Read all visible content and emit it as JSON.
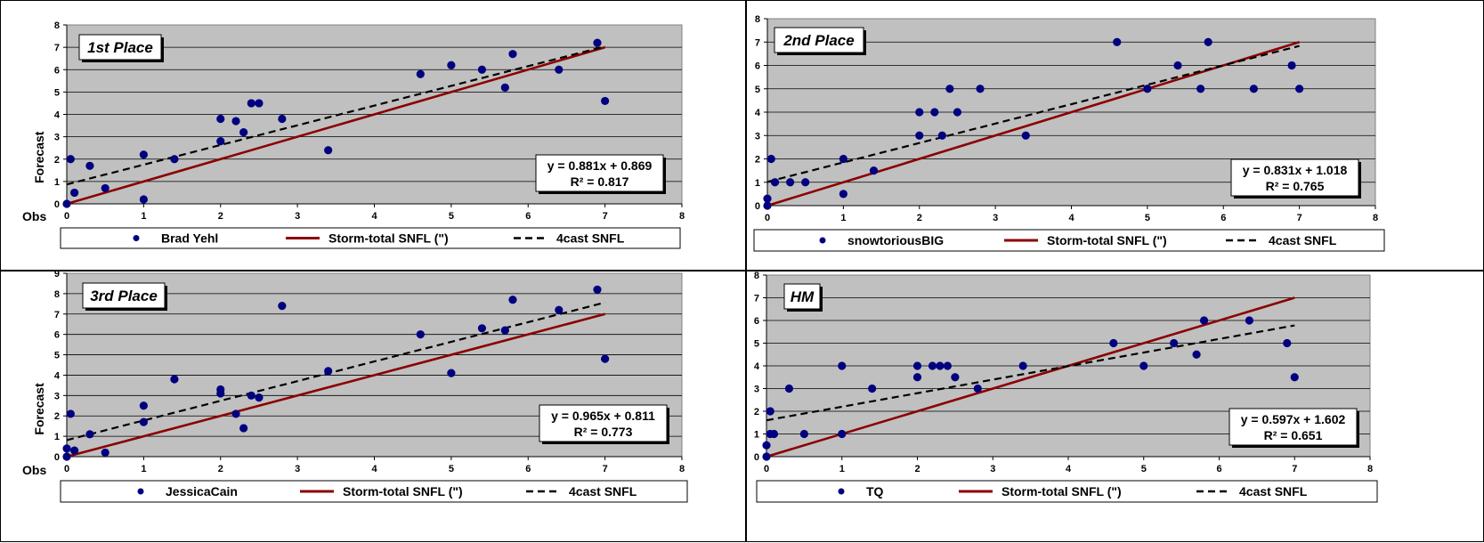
{
  "colors": {
    "plot_bg": "#c0c0c0",
    "grid": "#000000",
    "points": "#000080",
    "storm_line": "#8b0000",
    "forecast_line": "#000000"
  },
  "legend_common": {
    "storm_label": "Storm-total SNFL (\")",
    "forecast_label": "4cast SNFL"
  },
  "chart_data": [
    {
      "type": "scatter",
      "rank_label": "1st Place",
      "forecaster": "Brad Yehl",
      "ylabel": "Forecast",
      "xlabel": "Obs",
      "xlim": [
        0,
        8
      ],
      "ylim": [
        0,
        8
      ],
      "xticks": [
        "0",
        "1",
        "2",
        "3",
        "4",
        "5",
        "6",
        "7",
        "8"
      ],
      "yticks": [
        "0",
        "1",
        "2",
        "3",
        "4",
        "5",
        "6",
        "7",
        "8"
      ],
      "equation": "y = 0.881x + 0.869",
      "r2": "R² = 0.817",
      "trend": {
        "slope": 0.881,
        "intercept": 0.869,
        "x_start": 0,
        "x_end": 7
      },
      "identity_line": {
        "x_start": 0,
        "x_end": 7
      },
      "points": [
        [
          0,
          0
        ],
        [
          0.05,
          2
        ],
        [
          0.1,
          0.5
        ],
        [
          0.3,
          1.7
        ],
        [
          0.5,
          0.7
        ],
        [
          1.0,
          2.2
        ],
        [
          1.0,
          0.2
        ],
        [
          1.4,
          2.0
        ],
        [
          2.0,
          3.8
        ],
        [
          2.0,
          2.8
        ],
        [
          2.2,
          3.7
        ],
        [
          2.3,
          3.2
        ],
        [
          2.4,
          4.5
        ],
        [
          2.5,
          4.5
        ],
        [
          2.8,
          3.8
        ],
        [
          3.4,
          2.4
        ],
        [
          4.6,
          5.8
        ],
        [
          5.0,
          6.2
        ],
        [
          5.4,
          6.0
        ],
        [
          5.7,
          5.2
        ],
        [
          5.8,
          6.7
        ],
        [
          6.4,
          6.0
        ],
        [
          6.9,
          7.2
        ],
        [
          7.0,
          4.6
        ]
      ]
    },
    {
      "type": "scatter",
      "rank_label": "2nd Place",
      "forecaster": "snowtoriousBIG",
      "ylabel": "Forecast",
      "xlabel": "Obs",
      "xlim": [
        0,
        8
      ],
      "ylim": [
        0,
        8
      ],
      "xticks": [
        "0",
        "1",
        "2",
        "3",
        "4",
        "5",
        "6",
        "7",
        "8"
      ],
      "yticks": [
        "0",
        "1",
        "2",
        "3",
        "4",
        "5",
        "6",
        "7",
        "8"
      ],
      "equation": "y = 0.831x + 1.018",
      "r2": "R² = 0.765",
      "trend": {
        "slope": 0.831,
        "intercept": 1.018,
        "x_start": 0,
        "x_end": 7
      },
      "identity_line": {
        "x_start": 0,
        "x_end": 7
      },
      "points": [
        [
          0,
          0.3
        ],
        [
          0,
          0
        ],
        [
          0.05,
          2
        ],
        [
          0.1,
          1
        ],
        [
          0.3,
          1
        ],
        [
          0.5,
          1
        ],
        [
          1.0,
          2
        ],
        [
          1.0,
          0.5
        ],
        [
          1.4,
          1.5
        ],
        [
          2.0,
          4
        ],
        [
          2.0,
          3
        ],
        [
          2.2,
          4
        ],
        [
          2.3,
          3
        ],
        [
          2.4,
          5
        ],
        [
          2.5,
          4
        ],
        [
          2.8,
          5
        ],
        [
          3.4,
          3
        ],
        [
          4.6,
          7
        ],
        [
          5.0,
          5
        ],
        [
          5.4,
          6
        ],
        [
          5.7,
          5
        ],
        [
          5.8,
          7
        ],
        [
          6.4,
          5
        ],
        [
          6.9,
          6
        ],
        [
          7.0,
          5
        ]
      ]
    },
    {
      "type": "scatter",
      "rank_label": "3rd Place",
      "forecaster": "JessicaCain",
      "ylabel": "Forecast",
      "xlabel": "Obs",
      "xlim": [
        0,
        8
      ],
      "ylim": [
        0,
        9
      ],
      "xticks": [
        "0",
        "1",
        "2",
        "3",
        "4",
        "5",
        "6",
        "7",
        "8"
      ],
      "yticks": [
        "0",
        "1",
        "2",
        "3",
        "4",
        "5",
        "6",
        "7",
        "8",
        "9"
      ],
      "equation": "y = 0.965x + 0.811",
      "r2": "R² = 0.773",
      "trend": {
        "slope": 0.965,
        "intercept": 0.811,
        "x_start": 0,
        "x_end": 7
      },
      "identity_line": {
        "x_start": 0,
        "x_end": 7
      },
      "points": [
        [
          0,
          0.4
        ],
        [
          0,
          0
        ],
        [
          0.05,
          2.1
        ],
        [
          0.1,
          0.3
        ],
        [
          0.3,
          1.1
        ],
        [
          0.5,
          0.2
        ],
        [
          1.0,
          2.5
        ],
        [
          1.0,
          1.7
        ],
        [
          1.4,
          3.8
        ],
        [
          2.0,
          3.3
        ],
        [
          2.0,
          3.1
        ],
        [
          2.2,
          2.1
        ],
        [
          2.3,
          1.4
        ],
        [
          2.4,
          3.0
        ],
        [
          2.5,
          2.9
        ],
        [
          2.8,
          7.4
        ],
        [
          3.4,
          4.2
        ],
        [
          4.6,
          6.0
        ],
        [
          5.0,
          4.1
        ],
        [
          5.4,
          6.3
        ],
        [
          5.7,
          6.2
        ],
        [
          5.8,
          7.7
        ],
        [
          6.4,
          7.2
        ],
        [
          6.9,
          8.2
        ],
        [
          7.0,
          4.8
        ]
      ]
    },
    {
      "type": "scatter",
      "rank_label": "HM",
      "forecaster": "TQ",
      "ylabel": "Forecast",
      "xlabel": "Obs",
      "xlim": [
        0,
        8
      ],
      "ylim": [
        0,
        8
      ],
      "xticks": [
        "0",
        "1",
        "2",
        "3",
        "4",
        "5",
        "6",
        "7",
        "8"
      ],
      "yticks": [
        "0",
        "1",
        "2",
        "3",
        "4",
        "5",
        "6",
        "7",
        "8"
      ],
      "equation": "y = 0.597x + 1.602",
      "r2": "R² = 0.651",
      "trend": {
        "slope": 0.597,
        "intercept": 1.602,
        "x_start": 0,
        "x_end": 7
      },
      "identity_line": {
        "x_start": 0,
        "x_end": 7
      },
      "points": [
        [
          0,
          0.5
        ],
        [
          0,
          0
        ],
        [
          0.05,
          2
        ],
        [
          0.05,
          1
        ],
        [
          0.1,
          1
        ],
        [
          0.3,
          3
        ],
        [
          0.5,
          1
        ],
        [
          1.0,
          4
        ],
        [
          1.0,
          1
        ],
        [
          1.4,
          3
        ],
        [
          2.0,
          4
        ],
        [
          2.0,
          3.5
        ],
        [
          2.2,
          4
        ],
        [
          2.3,
          4
        ],
        [
          2.4,
          4
        ],
        [
          2.5,
          3.5
        ],
        [
          2.8,
          3
        ],
        [
          3.4,
          4
        ],
        [
          4.6,
          5
        ],
        [
          5.0,
          4
        ],
        [
          5.4,
          5
        ],
        [
          5.7,
          4.5
        ],
        [
          5.8,
          6
        ],
        [
          6.4,
          6
        ],
        [
          6.9,
          5
        ],
        [
          7.0,
          3.5
        ]
      ]
    }
  ]
}
